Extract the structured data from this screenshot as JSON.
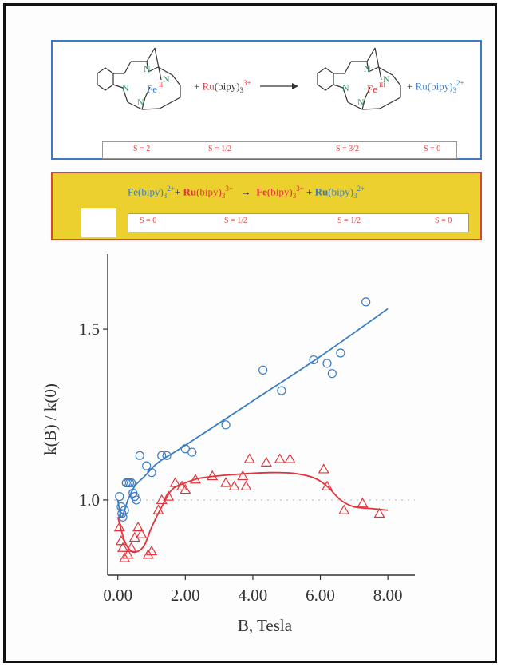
{
  "reaction1": {
    "plus1": "+",
    "ru": "Ru",
    "bipy_reactant": "(bipy)",
    "sub": "3",
    "sup_reactant": "3+",
    "fe_ox": "Fe",
    "fe_ox_sup": "II",
    "fe_red": "Fe",
    "fe_red_sup": "III",
    "plus2": "+",
    "bipy_product": "(bipy)",
    "sup_product": "2+",
    "spins": [
      "S = 2",
      "S = 1/2",
      "S = 3/2",
      "S = 0"
    ]
  },
  "reaction2": {
    "fe1": "Fe(bipy)",
    "fe1_sub": "3",
    "fe1_sup": "2+",
    "plus1": "+",
    "ru1_bold": "Ru",
    "ru1": "(bipy)",
    "ru1_sub": "3",
    "ru1_sup": "3+",
    "fe2_bold": "Fe",
    "fe2": "(bipy)",
    "fe2_sub": "3",
    "fe2_sup": "3+",
    "plus2": "+",
    "ru2_bold": "Ru",
    "ru2": "(bipy)",
    "ru2_sub": "3",
    "ru2_sup": "2+",
    "spins": [
      "S = 0",
      "S = 1/2",
      "S = 1/2",
      "S = 0"
    ]
  },
  "colors": {
    "blue": "#3a7cc4",
    "red": "#e2333a",
    "reference": "#c8c8c8",
    "yellow": "#ecd02e"
  },
  "chart_data": {
    "type": "scatter",
    "xlabel": "B, Tesla",
    "ylabel": "k(B) / k(0)",
    "xlim": [
      -0.3,
      8.8
    ],
    "ylim": [
      0.78,
      1.72
    ],
    "xticks": [
      "0.00",
      "2.00",
      "4.00",
      "6.00",
      "8.00"
    ],
    "yticks": [
      "1.0",
      "1.5"
    ],
    "reference_line": 1.0,
    "series": [
      {
        "color": "#3a7cc4",
        "marker": "circle",
        "points": [
          [
            0.05,
            1.01
          ],
          [
            0.1,
            0.98
          ],
          [
            0.12,
            0.96
          ],
          [
            0.15,
            0.95
          ],
          [
            0.2,
            0.97
          ],
          [
            0.25,
            1.05
          ],
          [
            0.3,
            1.05
          ],
          [
            0.35,
            1.05
          ],
          [
            0.4,
            1.05
          ],
          [
            0.45,
            1.02
          ],
          [
            0.5,
            1.01
          ],
          [
            0.55,
            1.0
          ],
          [
            0.65,
            1.13
          ],
          [
            0.85,
            1.1
          ],
          [
            1.0,
            1.08
          ],
          [
            1.3,
            1.13
          ],
          [
            1.45,
            1.13
          ],
          [
            2.0,
            1.15
          ],
          [
            2.2,
            1.14
          ],
          [
            3.2,
            1.22
          ],
          [
            4.3,
            1.38
          ],
          [
            4.85,
            1.32
          ],
          [
            5.8,
            1.41
          ],
          [
            6.2,
            1.4
          ],
          [
            6.35,
            1.37
          ],
          [
            6.6,
            1.43
          ],
          [
            7.35,
            1.58
          ]
        ],
        "fit": [
          [
            0.0,
            1.0
          ],
          [
            0.1,
            0.95
          ],
          [
            0.2,
            0.97
          ],
          [
            0.3,
            1.0
          ],
          [
            0.5,
            1.04
          ],
          [
            0.8,
            1.07
          ],
          [
            1.2,
            1.11
          ],
          [
            2.0,
            1.16
          ],
          [
            4.0,
            1.29
          ],
          [
            6.0,
            1.42
          ],
          [
            8.0,
            1.56
          ]
        ]
      },
      {
        "color": "#e2333a",
        "marker": "triangle",
        "points": [
          [
            0.05,
            0.92
          ],
          [
            0.1,
            0.88
          ],
          [
            0.15,
            0.86
          ],
          [
            0.2,
            0.83
          ],
          [
            0.3,
            0.84
          ],
          [
            0.4,
            0.86
          ],
          [
            0.5,
            0.89
          ],
          [
            0.6,
            0.92
          ],
          [
            0.7,
            0.9
          ],
          [
            0.9,
            0.84
          ],
          [
            1.0,
            0.85
          ],
          [
            1.2,
            0.97
          ],
          [
            1.3,
            1.0
          ],
          [
            1.5,
            1.01
          ],
          [
            1.7,
            1.05
          ],
          [
            1.9,
            1.04
          ],
          [
            2.0,
            1.03
          ],
          [
            2.3,
            1.06
          ],
          [
            2.8,
            1.07
          ],
          [
            3.2,
            1.05
          ],
          [
            3.45,
            1.04
          ],
          [
            3.7,
            1.07
          ],
          [
            3.8,
            1.04
          ],
          [
            3.9,
            1.12
          ],
          [
            4.4,
            1.11
          ],
          [
            4.8,
            1.12
          ],
          [
            5.1,
            1.12
          ],
          [
            6.1,
            1.09
          ],
          [
            6.2,
            1.04
          ],
          [
            6.7,
            0.97
          ],
          [
            7.25,
            0.99
          ],
          [
            7.75,
            0.96
          ]
        ],
        "fit": [
          [
            0.0,
            0.95
          ],
          [
            0.2,
            0.88
          ],
          [
            0.4,
            0.85
          ],
          [
            0.6,
            0.85
          ],
          [
            0.8,
            0.87
          ],
          [
            1.0,
            0.92
          ],
          [
            1.3,
            0.98
          ],
          [
            1.6,
            1.03
          ],
          [
            2.0,
            1.05
          ],
          [
            2.5,
            1.065
          ],
          [
            3.5,
            1.075
          ],
          [
            4.5,
            1.08
          ],
          [
            5.2,
            1.078
          ],
          [
            5.8,
            1.065
          ],
          [
            6.2,
            1.04
          ],
          [
            6.6,
            1.0
          ],
          [
            7.0,
            0.98
          ],
          [
            7.5,
            0.975
          ],
          [
            8.0,
            0.97
          ]
        ]
      }
    ]
  }
}
